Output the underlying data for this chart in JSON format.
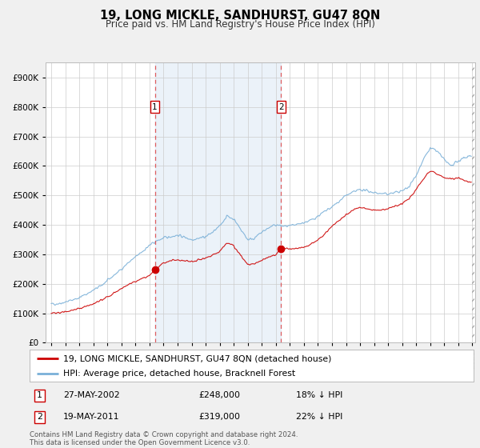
{
  "title": "19, LONG MICKLE, SANDHURST, GU47 8QN",
  "subtitle": "Price paid vs. HM Land Registry's House Price Index (HPI)",
  "background_color": "#f0f0f0",
  "plot_bg_color": "#ffffff",
  "grid_color": "#cccccc",
  "ylim": [
    0,
    950000
  ],
  "yticks": [
    0,
    100000,
    200000,
    300000,
    400000,
    500000,
    600000,
    700000,
    800000,
    900000
  ],
  "ytick_labels": [
    "£0",
    "£100K",
    "£200K",
    "£300K",
    "£400K",
    "£500K",
    "£600K",
    "£700K",
    "£800K",
    "£900K"
  ],
  "sale1_year": 2002.38,
  "sale1_price": 248000,
  "sale2_year": 2011.38,
  "sale2_price": 319000,
  "hpi_color": "#7ab0d8",
  "price_color": "#cc0000",
  "legend1": "19, LONG MICKLE, SANDHURST, GU47 8QN (detached house)",
  "legend2": "HPI: Average price, detached house, Bracknell Forest",
  "table_row1": [
    "1",
    "27-MAY-2002",
    "£248,000",
    "18% ↓ HPI"
  ],
  "table_row2": [
    "2",
    "19-MAY-2011",
    "£319,000",
    "22% ↓ HPI"
  ],
  "footer": "Contains HM Land Registry data © Crown copyright and database right 2024.\nThis data is licensed under the Open Government Licence v3.0."
}
